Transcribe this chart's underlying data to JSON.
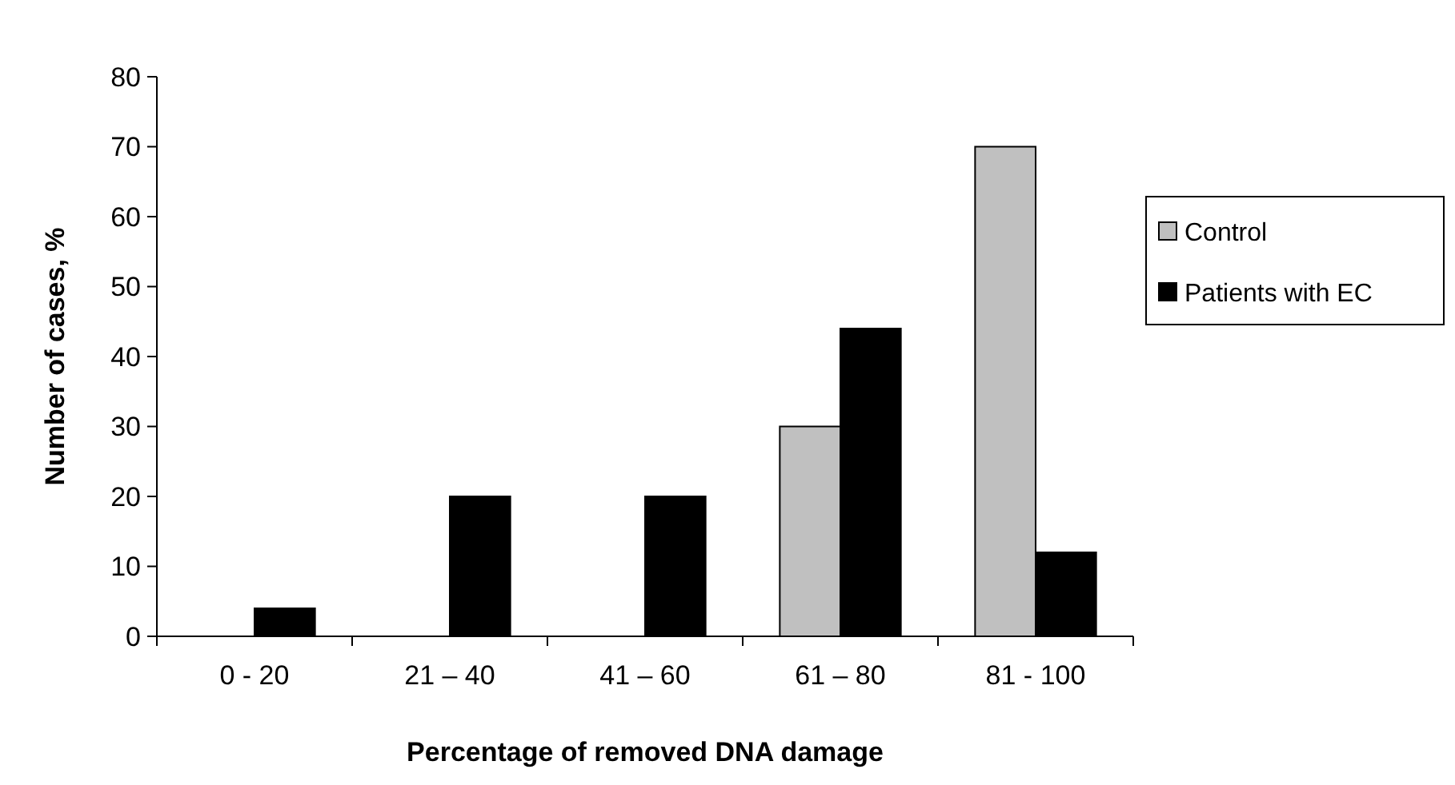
{
  "chart_data": {
    "type": "bar",
    "xlabel": "Percentage of removed DNA damage",
    "ylabel": "Number of cases, %",
    "categories": [
      "0 - 20",
      "21 – 40",
      "41 – 60",
      "61 – 80",
      "81 - 100"
    ],
    "series": [
      {
        "name": "Control",
        "color": "#c0c0c0",
        "values": [
          0,
          0,
          0,
          30,
          70
        ]
      },
      {
        "name": "Patients with EC",
        "color": "#000000",
        "values": [
          4,
          20,
          20,
          44,
          12
        ]
      }
    ],
    "ylim": [
      0,
      80
    ],
    "yticks": [
      0,
      10,
      20,
      30,
      40,
      50,
      60,
      70,
      80
    ],
    "grid": false,
    "legend": "right"
  }
}
